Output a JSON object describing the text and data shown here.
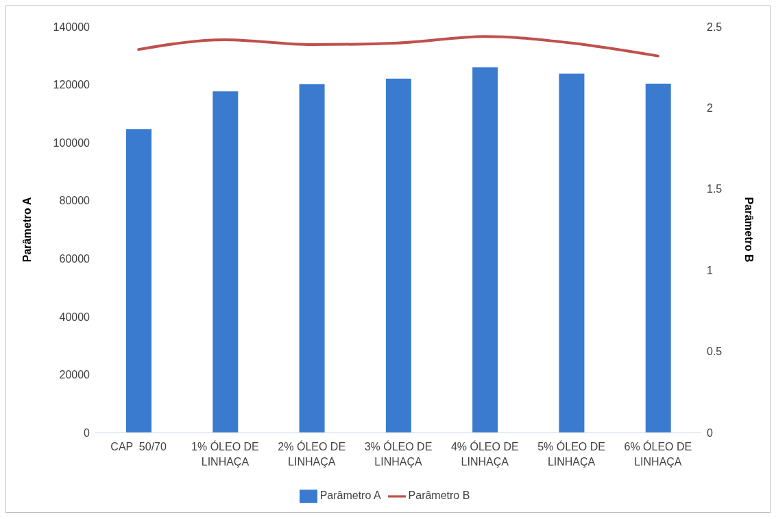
{
  "chart_data": {
    "type": "bar",
    "categories": [
      "CAP  50/70",
      "1% ÓLEO DE LINHAÇA",
      "2% ÓLEO DE LINHAÇA",
      "3% ÓLEO DE LINHAÇA",
      "4% ÓLEO DE LINHAÇA",
      "5% ÓLEO DE LINHAÇA",
      "6% ÓLEO DE LINHAÇA"
    ],
    "series": [
      {
        "name": "Parâmetro A",
        "color": "#3a7bd0",
        "values": [
          104700,
          117700,
          120200,
          122100,
          126000,
          123800,
          120400
        ]
      },
      {
        "name": "Parâmetro B",
        "type": "line",
        "axis": "y2",
        "color": "#c0504d",
        "values": [
          2.36,
          2.42,
          2.39,
          2.4,
          2.44,
          2.4,
          2.32
        ]
      }
    ],
    "ylabel": "Parâmetro A",
    "y2label": "Parâmetro B",
    "ylim": [
      0,
      140000
    ],
    "yticks": [
      0,
      20000,
      40000,
      60000,
      80000,
      100000,
      120000,
      140000
    ],
    "y2lim": [
      0,
      2.5
    ],
    "y2ticks": [
      0,
      0.5,
      1,
      1.5,
      2,
      2.5
    ],
    "grid": false,
    "legend": "bottom",
    "marker": "none"
  }
}
